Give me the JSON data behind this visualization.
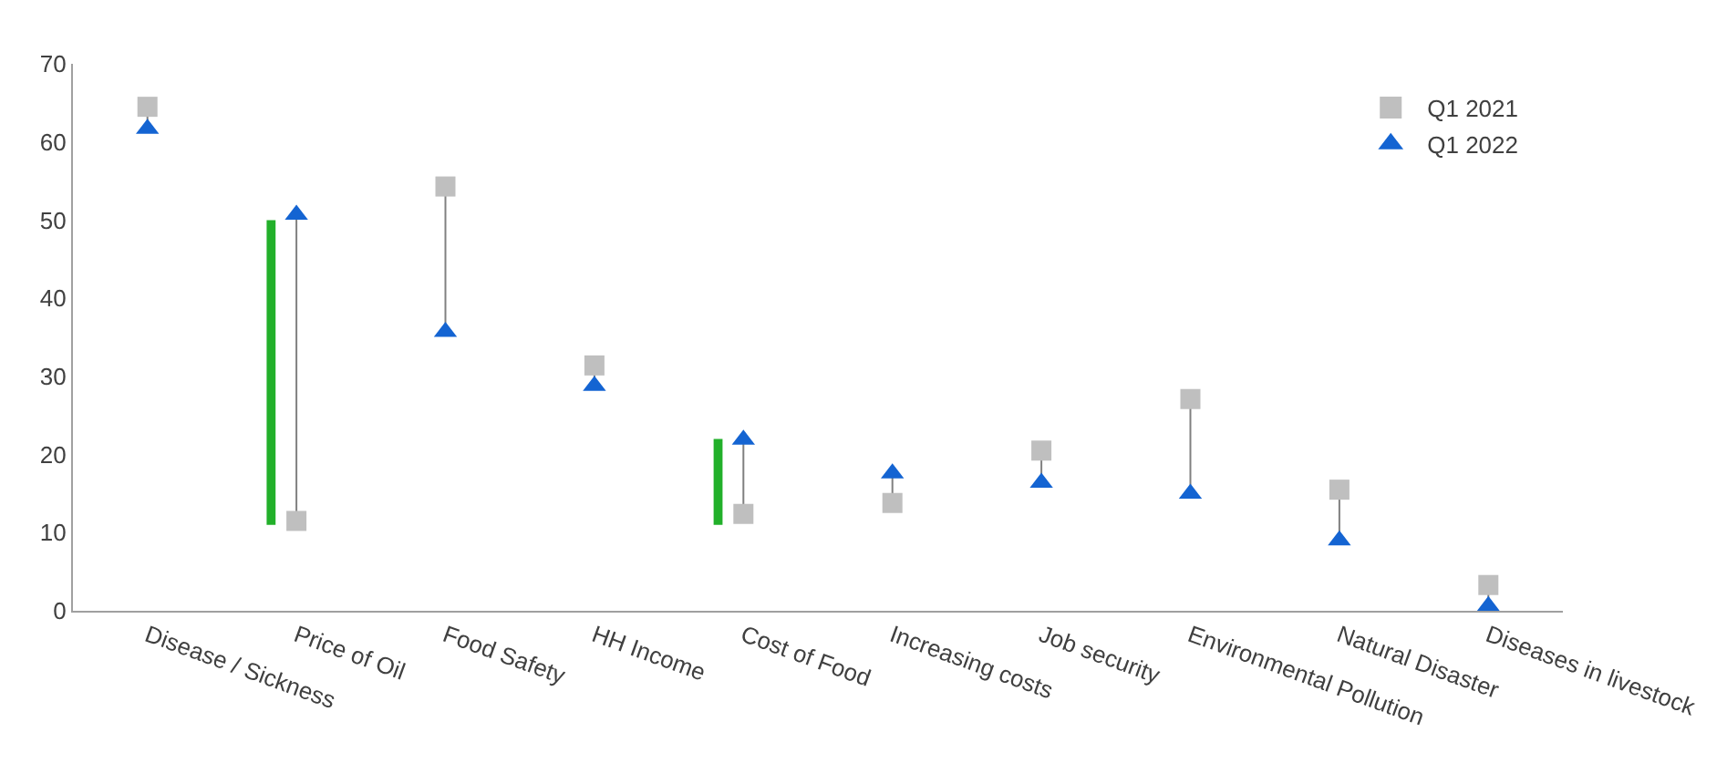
{
  "chart_data": {
    "type": "scatter",
    "categories": [
      "Disease / Sickness",
      "Price of Oil",
      "Food Safety",
      "HH Income",
      "Cost of Food",
      "Increasing costs",
      "Job security",
      "Environmental Pollution",
      "Natural Disaster",
      "Diseases in livestock"
    ],
    "series": [
      {
        "name": "Q1 2021",
        "color": "#bfbfbf",
        "marker": "square",
        "values": [
          64.5,
          11.5,
          54.3,
          31.4,
          12.4,
          13.8,
          20.5,
          27.1,
          15.5,
          3.3
        ]
      },
      {
        "name": "Q1 2022",
        "color": "#1464d2",
        "marker": "triangle",
        "values": [
          61.7,
          50.7,
          35.7,
          28.8,
          21.9,
          17.6,
          16.4,
          15.0,
          9.0,
          0.6
        ]
      },
      {
        "type": "bar",
        "color": "#22b02a",
        "base": [
          null,
          11,
          null,
          null,
          11,
          null,
          null,
          null,
          null,
          null
        ],
        "values": [
          null,
          39,
          null,
          null,
          11,
          null,
          null,
          null,
          null,
          null
        ]
      }
    ],
    "ylim": [
      0,
      70
    ],
    "yticks": [
      0,
      10,
      20,
      30,
      40,
      50,
      60,
      70
    ],
    "grid": false,
    "legend": "top right"
  }
}
